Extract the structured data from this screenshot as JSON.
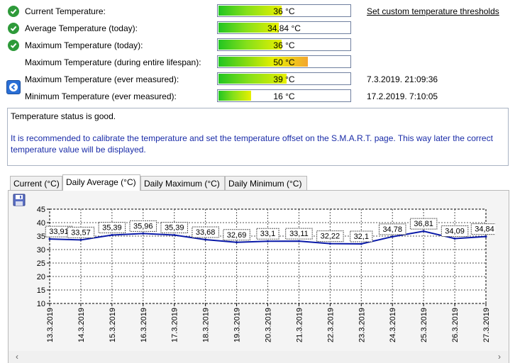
{
  "rows": [
    {
      "label": "Current Temperature:",
      "value": "36 °C",
      "fraction": 0.48,
      "status": "ok",
      "extra": "Set custom temperature thresholds",
      "extra_link": true
    },
    {
      "label": "Average Temperature (today):",
      "value": "34,84 °C",
      "fraction": 0.46,
      "status": "ok",
      "extra": ""
    },
    {
      "label": "Maximum Temperature (today):",
      "value": "36 °C",
      "fraction": 0.48,
      "status": "ok",
      "extra": ""
    },
    {
      "label": "Maximum Temperature (during entire lifespan):",
      "value": "50 °C",
      "fraction": 0.68,
      "status": "none",
      "extra": ""
    },
    {
      "label": "Maximum Temperature (ever measured):",
      "value": "39 °C",
      "fraction": 0.52,
      "status": "back",
      "extra": "7.3.2019. 21:09:36"
    },
    {
      "label": "Minimum Temperature (ever measured):",
      "value": "16 °C",
      "fraction": 0.25,
      "status": "none",
      "extra": "17.2.2019. 7:10:05"
    }
  ],
  "status": {
    "message": "Temperature status is good.",
    "recommendation": "It is recommended to calibrate the temperature and set the temperature offset on the S.M.A.R.T. page. This way later the correct temperature value will be displayed."
  },
  "tabs": [
    "Current (°C)",
    "Daily Average (°C)",
    "Daily Maximum (°C)",
    "Daily Minimum (°C)"
  ],
  "active_tab": 1,
  "icons": {
    "ok": "check-circle-icon",
    "back": "back-arrow-icon",
    "save": "save-disk-icon"
  },
  "colors": {
    "ok_green": "#2e9a3a",
    "series": "#0a1aa8",
    "link_blue": "#1a2ca8"
  },
  "chart_data": {
    "type": "line",
    "categories": [
      "13.3.2019",
      "14.3.2019",
      "15.3.2019",
      "16.3.2019",
      "17.3.2019",
      "18.3.2019",
      "19.3.2019",
      "20.3.2019",
      "21.3.2019",
      "22.3.2019",
      "23.3.2019",
      "24.3.2019",
      "25.3.2019",
      "26.3.2019",
      "27.3.2019"
    ],
    "values": [
      33.91,
      33.57,
      35.39,
      35.96,
      35.39,
      33.68,
      32.69,
      33.1,
      33.11,
      32.22,
      32.1,
      34.78,
      36.81,
      34.09,
      34.84
    ],
    "labels": [
      "33,91",
      "33,57",
      "35,39",
      "35,96",
      "35,39",
      "33,68",
      "32,69",
      "33,1",
      "33,11",
      "32,22",
      "32,1",
      "34,78",
      "36,81",
      "34,09",
      "34,84"
    ],
    "yticks": [
      "10",
      "15",
      "20",
      "25",
      "30",
      "35",
      "40",
      "45"
    ],
    "ylim": [
      10,
      45
    ],
    "grid": true
  }
}
